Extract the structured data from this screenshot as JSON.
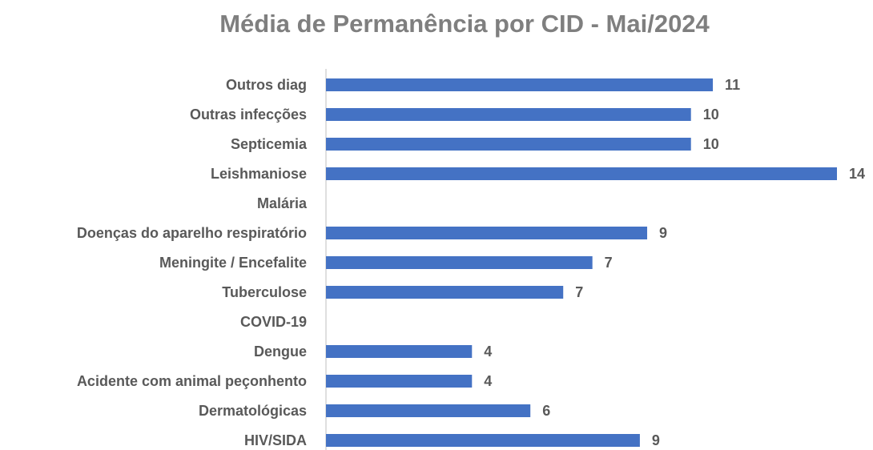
{
  "chart_data": {
    "type": "bar",
    "orientation": "horizontal",
    "title": "Média de Permanência por CID - Mai/2024",
    "categories": [
      "Outros diag",
      "Outras infecções",
      "Septicemia",
      "Leishmaniose",
      "Malária",
      "Doenças do aparelho respiratório",
      "Meningite / Encefalite",
      "Tuberculose",
      "COVID-19",
      "Dengue",
      "Acidente com animal peçonhento",
      "Dermatológicas",
      "HIV/SIDA"
    ],
    "values": [
      10.6,
      10,
      10,
      14,
      null,
      8.8,
      7.3,
      6.5,
      null,
      4,
      4,
      5.6,
      8.6
    ],
    "value_labels": [
      "11",
      "10",
      "10",
      "14",
      null,
      "9",
      "7",
      "7",
      null,
      "4",
      "4",
      "6",
      "9"
    ],
    "color": "#4472c4",
    "xlim": [
      0,
      14
    ]
  }
}
